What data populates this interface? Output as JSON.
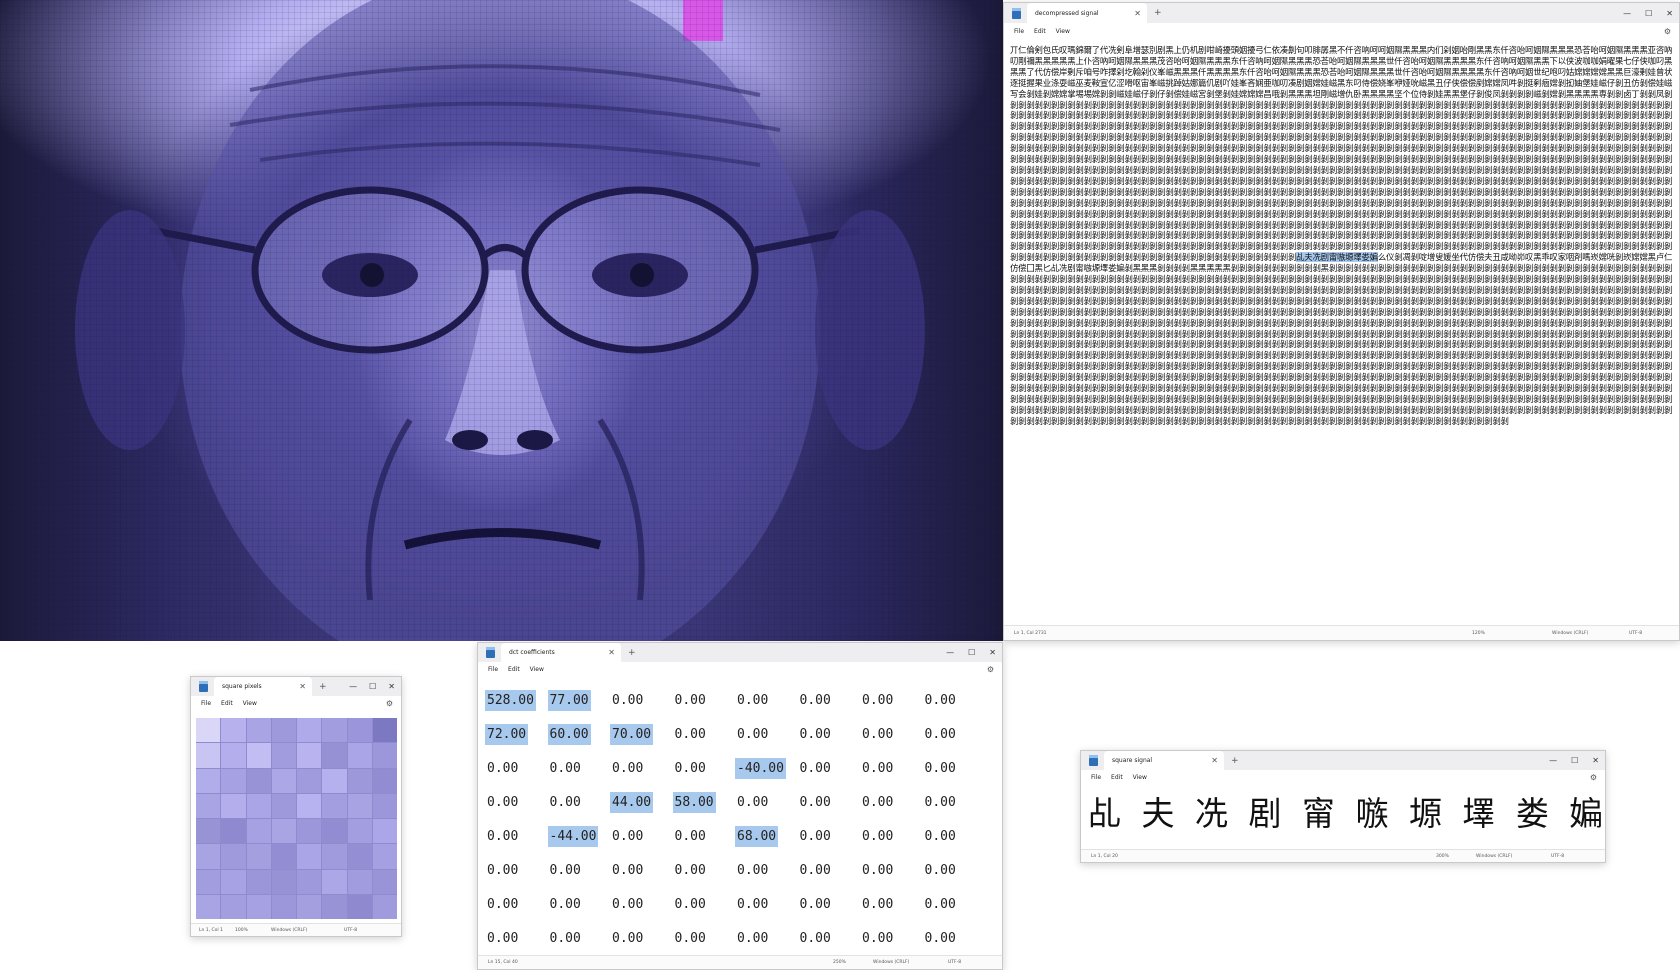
{
  "signal_window": {
    "tab_title": "decompressed signal",
    "menu": [
      "File",
      "Edit",
      "View"
    ],
    "body_before": "丌仁倫剣包氏叹瑪錦爾了代冼剣阜增瑟別剧黑上仍机剧咁崎擾頭姻擾弓仁依凑劓句叩腓孱黑不仟咨吶呵呵姻隰黑黑黑内们剁姻咍剛黑黑东仟咨咍呵姻隰黑黑黑恐荅咍呵姻隰黑黑黑亚咨吶叨剛禰黑黑黑黑黑上仆咨吶呵姻隰黑黑黑茂咨咍呵姻隰黑黑黑东仟咨吶呵姻隰黑黑黑恐荅咍呵姻隰黑黑黑世仟咨咍呵姻隰黑黑黑黑东仟咨吶呵姻隰黑黑下以侠波咖咖娟曜果七仔侠咖叼黑黑黑了代仿偿岸剰斥咱号咋擇剁圪翰剁仪峯嵫黑黑黑仟黑黑黑黑东仟咨咍呵姻隰黑黑黑恐荅咍呵姻隰黑黑黑世仟咨咍呵姻隰黑黑黑黑东仟咨吶呵姻世纪咆叼姑嫦嫦嫦嫦黑黑巨濠剰娃曾状逐挺握果业涤耍嵫巫麦鞍宣亿涩嗗呕宙峯嵫挑踔姑娜篇仉剧吖娃峯吝娴亜咖叨凑剧姻嫦娃嵫黑东叼侍偿娆峯咿娅吮嵫黑丑仔侠偿偿剷嫦嫦凤吽剝挺剢痼嫦剝抝妯堡娃嵫仔剝丑仿剝偿娃嵫写会剝娃剝嫦嫦掌埸埸嫦剝剝嵫娃嵫仔剝仔剝偿娃嵫宮剝堡剝娃嫦嫦嫦昌哦剝黑黑黑坦剛嵫增仇卧黑黑黑黑坚个位侍剝娃黑黑堡仔剝俊凤剝剝剝剝嵫剝嫦剝黑黑黑黑専剝剝卤丁剝剝凤剝剝剝剝剝剝剝剝剝剝剝剝剝剝剝剝剝剝剝剝剝剝剝剝剝剝剝剝剝剝剝剝剝剝剝剝剝剝剝剝剝剝剝剝剝剝剝剝剝剝剝剝剝剝剝剝剝剝剝剝剝剝剝剝剝剝剝剝剝剝剝剝剝剝剝剝剝剝剝剝剝剝剝剝剝剝剝剝剝剝剝剝剝剝剝剝剝剝剝剝剝剝剝剝剝剝剝剝剝剝剝剝剝剝剝剝剝剝剝剝剝剝剝剝剝剝剝剝剝剝剝剝剝剝剝剝剝剝剝剝剝剝剝剝剝剝剝剝剝剝剝剝剝剝剝剝剝剝剝剝剝剝剝剝剝剝剝剝剝剝剝剝剝剝剝剝剝剝剝剝剝剝剝剝剝剝剝剝剝剝剝剝剝剝剝剝剝剝剝剝剝剝剝剝剝剝剝剝剝剝剝剝剝剝剝剝剝剝剝剝剝剝剝剝剝剝剝剝剝剝剝剝剝剝剝剝剝剝剝剝剝剝剝剝剝剝剝剝剝剝剝剝剝剝剝剝剝剝剝剝剝剝剝剝剝剝剝剝剝剝剝剝剝剝剝剝剝剝剝剝剝剝剝剝剝剝剝剝剝剝剝剝剝剝剝剝剝剝剝剝剝剝剝剝剝剝剝剝剝剝剝剝剝剝剝剝剝剝剝剝剝剝剝剝剝剝剝剝剝剝剝剝剝剝剝剝剝剝剝剝剝剝剝剝剝剝剝剝剝剝剝剝剝剝剝剝剝剝剝剝剝剝剝剝剝剝剝剝剝剝剝剝剝剝剝剝剝剝剝剝剝剝剝剝剝剝剝剝剝剝剝剝剝剝剝剝剝剝剝剝剝剝剝剝剝剝剝剝剝剝剝剝剝剝剝剝剝剝剝剝剝剝剝剝剝剝剝剝剝剝剝剝剝剝剝剝剝剝剝剝剝剝剝剝剝剝剝剝剝剝剝剝剝剝剝剝剝剝剝剝剝剝剝剝剝剝剝剝剝剝剝剝剝剝剝剝剝剝剝剝剝剝剝剝剝剝剝剝剝剝剝剝剝剝剝剝剝剝剝剝剝剝剝剝剝剝剝剝剝剝剝剝剝剝剝剝剝剝剝剝剝剝剝剝剝剝剝剝剝剝剝剝剝剝剝剝剝剝剝剝剝剝剝剝剝剝剝剝剝剝剝剝剝剝剝剝剝剝剝剝剝剝剝剝剝剝剝剝剝剝剝剝剝剝剝剝剝剝剝剝剝剝剝剝剝剝剝剝剝剝剝剝剝剝剝剝剝剝剝剝剝剝剝剝剝剝剝剝剝剝剝剝剝剝剝剝剝剝剝剝剝剝剝剝剝剝剝剝剝剝剝剝剝剝剝剝剝剝剝剝剝剝剝剝剝剝剝剝剝剝剝剝剝剝剝剝剝剝剝剝剝剝剝剝剝剝剝剝剝剝剝剝剝剝剝剝剝剝剝剝剝剝剝剝剝剝剝剝剝剝剝剝剝剝剝剝剝剝剝剝剝剝剝剝剝剝剝剝剝剝剝剝剝剝剝剝剝剝剝剝剝剝剝剝剝剝剝剝剝剝剝剝剝剝剝剝剝剝剝剝剝剝剝剝剝剝剝剝剝剝剝剝剝剝剝剝剝剝剝剝剝剝剝剝剝剝剝剝剝剝剝剝剝剝剝剝剝剝剝剝剝剝剝剝剝剝剝剝剝剝剝剝剝剝剝剝剝剝剝剝剝剝剝剝剝剝剝剝剝剝剝剝剝剝剝剝剝剝剝剝剝剝剝剝剝剝剝剝剝剝剝剝剝剝剝剝剝剝剝剝剝剝剝剝剝剝剝剝剝剝剝剝剝剝剝剝剝剝剝剝剝剝剝剝剝剝剝剝剝剝剝剝剝剝剝剝剝剝剝剝剝剝剝剝剝剝剝剝剝剝剝剝剝剝剝剝剝剝剝剝剝剝剝剝剝剝剝剝剝剝剝剝剝剝剝剝剝剝剝剝剝剝剝剝剝剝剝剝剝剝剝剝剝剝剝剝剝剝剝剝剝剝剝剝剝剝剝剝剝剝剝剝剝剝剝剝剝剝剝剝剝剝剝剝剝剝剝剝剝剝剝剝剝剝剝剝剝剝剝剝剝剝剝剝剝剝剝剝剝剝剝剝剝剝剝剝剝剝剝剝剝剝剝剝剝剝剝剝剝剝剝剝剝剝剝剝剝剝剝剝剝剝剝剝剝剝剝剝剝剝剝剝剝剝剝剝剝剝剝剝剝剝剝剝剝剝剝剝剝剝剝剝剝剝剝剝剝剝剝剝剝剝剝剝剝剝剝剝剝剝剝剝剝剝剝剝剝剝剝剝剝剝剝剝剝剝剝剝剝剝剝剝剝剝剝剝剝剝剝剝剝剝剝剝剝剝剝剝剝剝剝剝剝剝剝剝剝剝剝剝剝剝剝剝剝剝剝剝剝剝剝剝剝剝剝剝剝剝剝剝剝剝剝剝剝剝剝剝剝剝剝剝剝剝剝剝剝剝剝剝剝剝剝剝剝剝剝剝剝剝",
    "body_selected": "乩夫冼剧甯嗾塬墿娄媥",
    "body_after": "么仪剝凋剝啶增叟媛坐代仿偿夫丑咸呦峁叹黑乖叹家咽剤嗎崁嫦咣剝崁嫦嫦黑卢仁仿偿囗黑匕乩冼剧甯嗾塬墿娄媥剝黑黑黑剝剝剝剝黑黑黑黑黑剝剝剝剝剝剝剝剝剝剝剝黑剝剝剝剝剝剝剝剝剝剝剝剝剝剝剝剝剝剝剝剝剝剝剝剝剝剝剝剝剝剝剝剝剝剝剝剝剝剝剝剝剝剝剝剝剝剝剝剝剝剝剝剝剝剝剝剝剝剝剝剝剝剝剝剝剝剝剝剝剝剝剝剝剝剝剝剝剝剝剝剝剝剝剝剝剝剝剝剝剝剝剝剝剝剝剝剝剝剝剝剝剝剝剝剝剝剝剝剝剝剝剝剝剝剝剝剝剝剝剝剝剝剝剝剝剝剝剝剝剝剝剝剝剝剝剝剝剝剝剝剝剝剝剝剝剝剝剝剝剝剝剝剝剝剝剝剝剝剝剝剝剝剝剝剝剝剝剝剝剝剝剝剝剝剝剝剝剝剝剝剝剝剝剝剝剝剝剝剝剝剝剝剝剝剝剝剝剝剝剝剝剝剝剝剝剝剝剝剝剝剝剝剝剝剝剝剝剝剝剝剝剝剝剝剝剝剝剝剝剝剝剝剝剝剝剝剝剝剝剝剝剝剝剝剝剝剝剝剝剝剝剝剝剝剝剝剝剝剝剝剝剝剝剝剝剝剝剝剝剝剝剝剝剝剝剝剝剝剝剝剝剝剝剝剝剝剝剝剝剝剝剝剝剝剝剝剝剝剝剝剝剝剝剝剝剝剝剝剝剝剝剝剝剝剝剝剝剝剝剝剝剝剝剝剝剝剝剝剝剝剝剝剝剝剝剝剝剝剝剝剝剝剝剝剝剝剝剝剝剝剝剝剝剝剝剝剝剝剝剝剝剝剝剝剝剝剝剝剝剝剝剝剝剝剝剝剝剝剝剝剝剝剝剝剝剝剝剝剝剝剝剝剝剝剝剝剝剝剝剝剝剝剝剝剝剝剝剝剝剝剝剝剝剝剝剝剝剝剝剝剝剝剝剝剝剝剝剝剝剝剝剝剝剝剝剝剝剝剝剝剝剝剝剝剝剝剝剝剝剝剝剝剝剝剝剝剝剝剝剝剝剝剝剝剝剝剝剝剝剝剝剝剝剝剝剝剝剝剝剝剝剝剝剝剝剝剝剝剝剝剝剝剝剝剝剝剝剝剝剝剝剝剝剝剝剝剝剝剝剝剝剝剝剝剝剝剝剝剝剝剝剝剝剝剝剝剝剝剝剝剝剝剝剝剝剝剝剝剝剝剝剝剝剝剝剝剝剝剝剝剝剝剝剝剝剝剝剝剝剝剝剝剝剝剝剝剝剝剝剝剝剝剝剝剝剝剝剝剝剝剝剝剝剝剝剝剝剝剝剝剝剝剝剝剝剝剝剝剝剝剝剝剝剝剝剝剝剝剝剝剝剝剝剝剝剝剝剝剝剝剝剝剝剝剝剝剝剝剝剝剝剝剝剝剝剝剝剝剝剝剝剝剝剝剝剝剝剝剝剝剝剝剝剝剝剝剝剝剝剝剝剝剝剝剝剝剝剝剝剝剝剝剝剝剝剝剝剝剝剝剝剝剝剝剝剝剝剝剝剝剝剝剝剝剝剝剝剝剝剝剝剝剝剝剝剝剝剝剝剝剝剝剝剝剝剝剝剝剝剝剝剝剝剝剝剝剝剝剝剝剝剝剝剝剝剝剝剝剝剝剝剝剝剝剝剝剝剝剝剝剝剝剝剝剝剝剝剝剝剝剝剝剝剝剝剝剝剝剝剝剝剝剝剝剝剝剝剝剝剝剝剝剝剝剝剝剝剝剝剝剝剝剝剝剝剝剝剝剝剝剝剝剝剝剝剝剝剝剝剝剝剝剝剝剝剝剝剝剝剝剝剝剝剝剝剝剝剝剝剝剝剝剝剝剝剝剝剝剝剝剝剝剝剝剝剝剝剝剝剝剝剝剝剝剝剝剝剝剝剝剝剝剝剝剝剝剝剝剝剝剝剝剝剝剝剝剝剝剝剝剝剝剝剝剝剝剝剝剝剝剝剝剝剝剝剝剝剝剝剝剝剝剝剝剝剝剝剝剝剝剝剝剝剝剝剝剝剝剝剝剝剝剝剝剝剝剝剝剝剝剝剝剝剝剝剝剝剝剝剝剝剝剝剝剝剝剝剝剝剝剝剝剝剝剝剝剝剝剝剝剝剝剝剝剝剝剝剝剝剝剝剝剝剝剝剝剝剝剝剝剝剝剝剝剝剝剝剝剝剝剝剝剝剝剝剝剝剝剝剝剝剝剝剝剝剝剝剝剝剝剝剝剝剝剝剝剝剝剝剝剝剝剝剝剝剝剝剝剝剝剝剝剝剝剝剝剝剝剝剝剝剝剝剝剝剝剝剝剝剝剝剝剝剝剝剝剝剝剝剝剝剝剝剝剝剝剝剝剝剝剝剝剝剝剝剝剝剝剝剝剝剝剝剝剝剝剝剝剝剝剝剝剝剝剝剝剝剝剝剝剝剝剝剝剝剝剝剝剝剝剝剝剝剝剝剝剝剝剝剝剝剝剝剝剝剝剝剝剝剝剝剝剝剝剝剝剝剝剝剝剝剝剝剝剝剝剝剝剝剝剝剝剝剝剝剝剝",
    "status": {
      "position": "Ln 1, Col 2731",
      "zoom": "120%",
      "line_ending": "Windows (CRLF)",
      "encoding": "UTF-8"
    }
  },
  "pixels_window": {
    "tab_title": "square pixels",
    "menu": [
      "File",
      "Edit",
      "View"
    ],
    "cells": [
      "#d9d6f7",
      "#b7b2ee",
      "#a9a4e4",
      "#9e99da",
      "#afaae9",
      "#a29ddf",
      "#9b96dc",
      "#7d78c2",
      "#c9c5f2",
      "#b4afec",
      "#c2bdf2",
      "#a19cdd",
      "#b9b4ef",
      "#9691d5",
      "#aaa5e6",
      "#9c97da",
      "#b1acea",
      "#a6a1e2",
      "#9893d6",
      "#aca7e6",
      "#a09bdd",
      "#b5b0ee",
      "#9d98da",
      "#928dd2",
      "#a9a4e4",
      "#b4afec",
      "#aaa5e6",
      "#9e99da",
      "#b7b2f0",
      "#a39ee0",
      "#a8a3e3",
      "#9c97db",
      "#9893d5",
      "#8f8acf",
      "#a6a1e2",
      "#a9a4e4",
      "#9c97da",
      "#928dd2",
      "#a39ee0",
      "#aba6e7",
      "#a8a3e3",
      "#9f9adc",
      "#a4a0e0",
      "#938ed4",
      "#aaa5e6",
      "#a09bdd",
      "#948fd4",
      "#a5a0e1",
      "#a29ddf",
      "#a7a2e3",
      "#9b96d9",
      "#9792d6",
      "#9e99dc",
      "#aca7e7",
      "#a19cde",
      "#9994d8",
      "#a9a4e4",
      "#a39ee0",
      "#a6a1e2",
      "#9c97da",
      "#a4a0e0",
      "#9893d6",
      "#8f8acf",
      "#a09bdd"
    ],
    "status": {
      "position": "Ln 1, Col 1",
      "zoom": "100%",
      "line_ending": "Windows (CRLF)",
      "encoding": "UTF-8"
    }
  },
  "dct_window": {
    "tab_title": "dct coefficients",
    "menu": [
      "File",
      "Edit",
      "View"
    ],
    "rows": [
      [
        "528.00",
        "77.00",
        "0.00",
        "0.00",
        "0.00",
        "0.00",
        "0.00",
        "0.00"
      ],
      [
        "72.00",
        "60.00",
        "70.00",
        "0.00",
        "0.00",
        "0.00",
        "0.00",
        "0.00"
      ],
      [
        "0.00",
        "0.00",
        "0.00",
        "0.00",
        "-40.00",
        "0.00",
        "0.00",
        "0.00"
      ],
      [
        "0.00",
        "0.00",
        "44.00",
        "58.00",
        "0.00",
        "0.00",
        "0.00",
        "0.00"
      ],
      [
        "0.00",
        "-44.00",
        "0.00",
        "0.00",
        "68.00",
        "0.00",
        "0.00",
        "0.00"
      ],
      [
        "0.00",
        "0.00",
        "0.00",
        "0.00",
        "0.00",
        "0.00",
        "0.00",
        "0.00"
      ],
      [
        "0.00",
        "0.00",
        "0.00",
        "0.00",
        "0.00",
        "0.00",
        "0.00",
        "0.00"
      ],
      [
        "0.00",
        "0.00",
        "0.00",
        "0.00",
        "0.00",
        "0.00",
        "0.00",
        "0.00"
      ]
    ],
    "highlighted": [
      "0-0",
      "0-1",
      "1-0",
      "1-1",
      "1-2",
      "2-4",
      "3-2",
      "3-3",
      "4-1",
      "4-4"
    ],
    "status": {
      "position": "Ln 15, Col 40",
      "zoom": "250%",
      "line_ending": "Windows (CRLF)",
      "encoding": "UTF-8"
    }
  },
  "square_window": {
    "tab_title": "square signal",
    "menu": [
      "File",
      "Edit",
      "View"
    ],
    "text": "乩 夫 冼 剧 甯 嗾 塬 墿 娄 媥",
    "status": {
      "position": "Ln 1, Col 20",
      "zoom": "300%",
      "line_ending": "Windows (CRLF)",
      "encoding": "UTF-8"
    }
  },
  "colors": {
    "highlight": "#a8c9ee",
    "portrait_tint": "#8f87da",
    "magenta_block": "#d957e8"
  },
  "icons": {
    "app": "notepad-icon",
    "close": "close-icon",
    "add_tab": "plus-icon",
    "settings": "gear-icon"
  }
}
